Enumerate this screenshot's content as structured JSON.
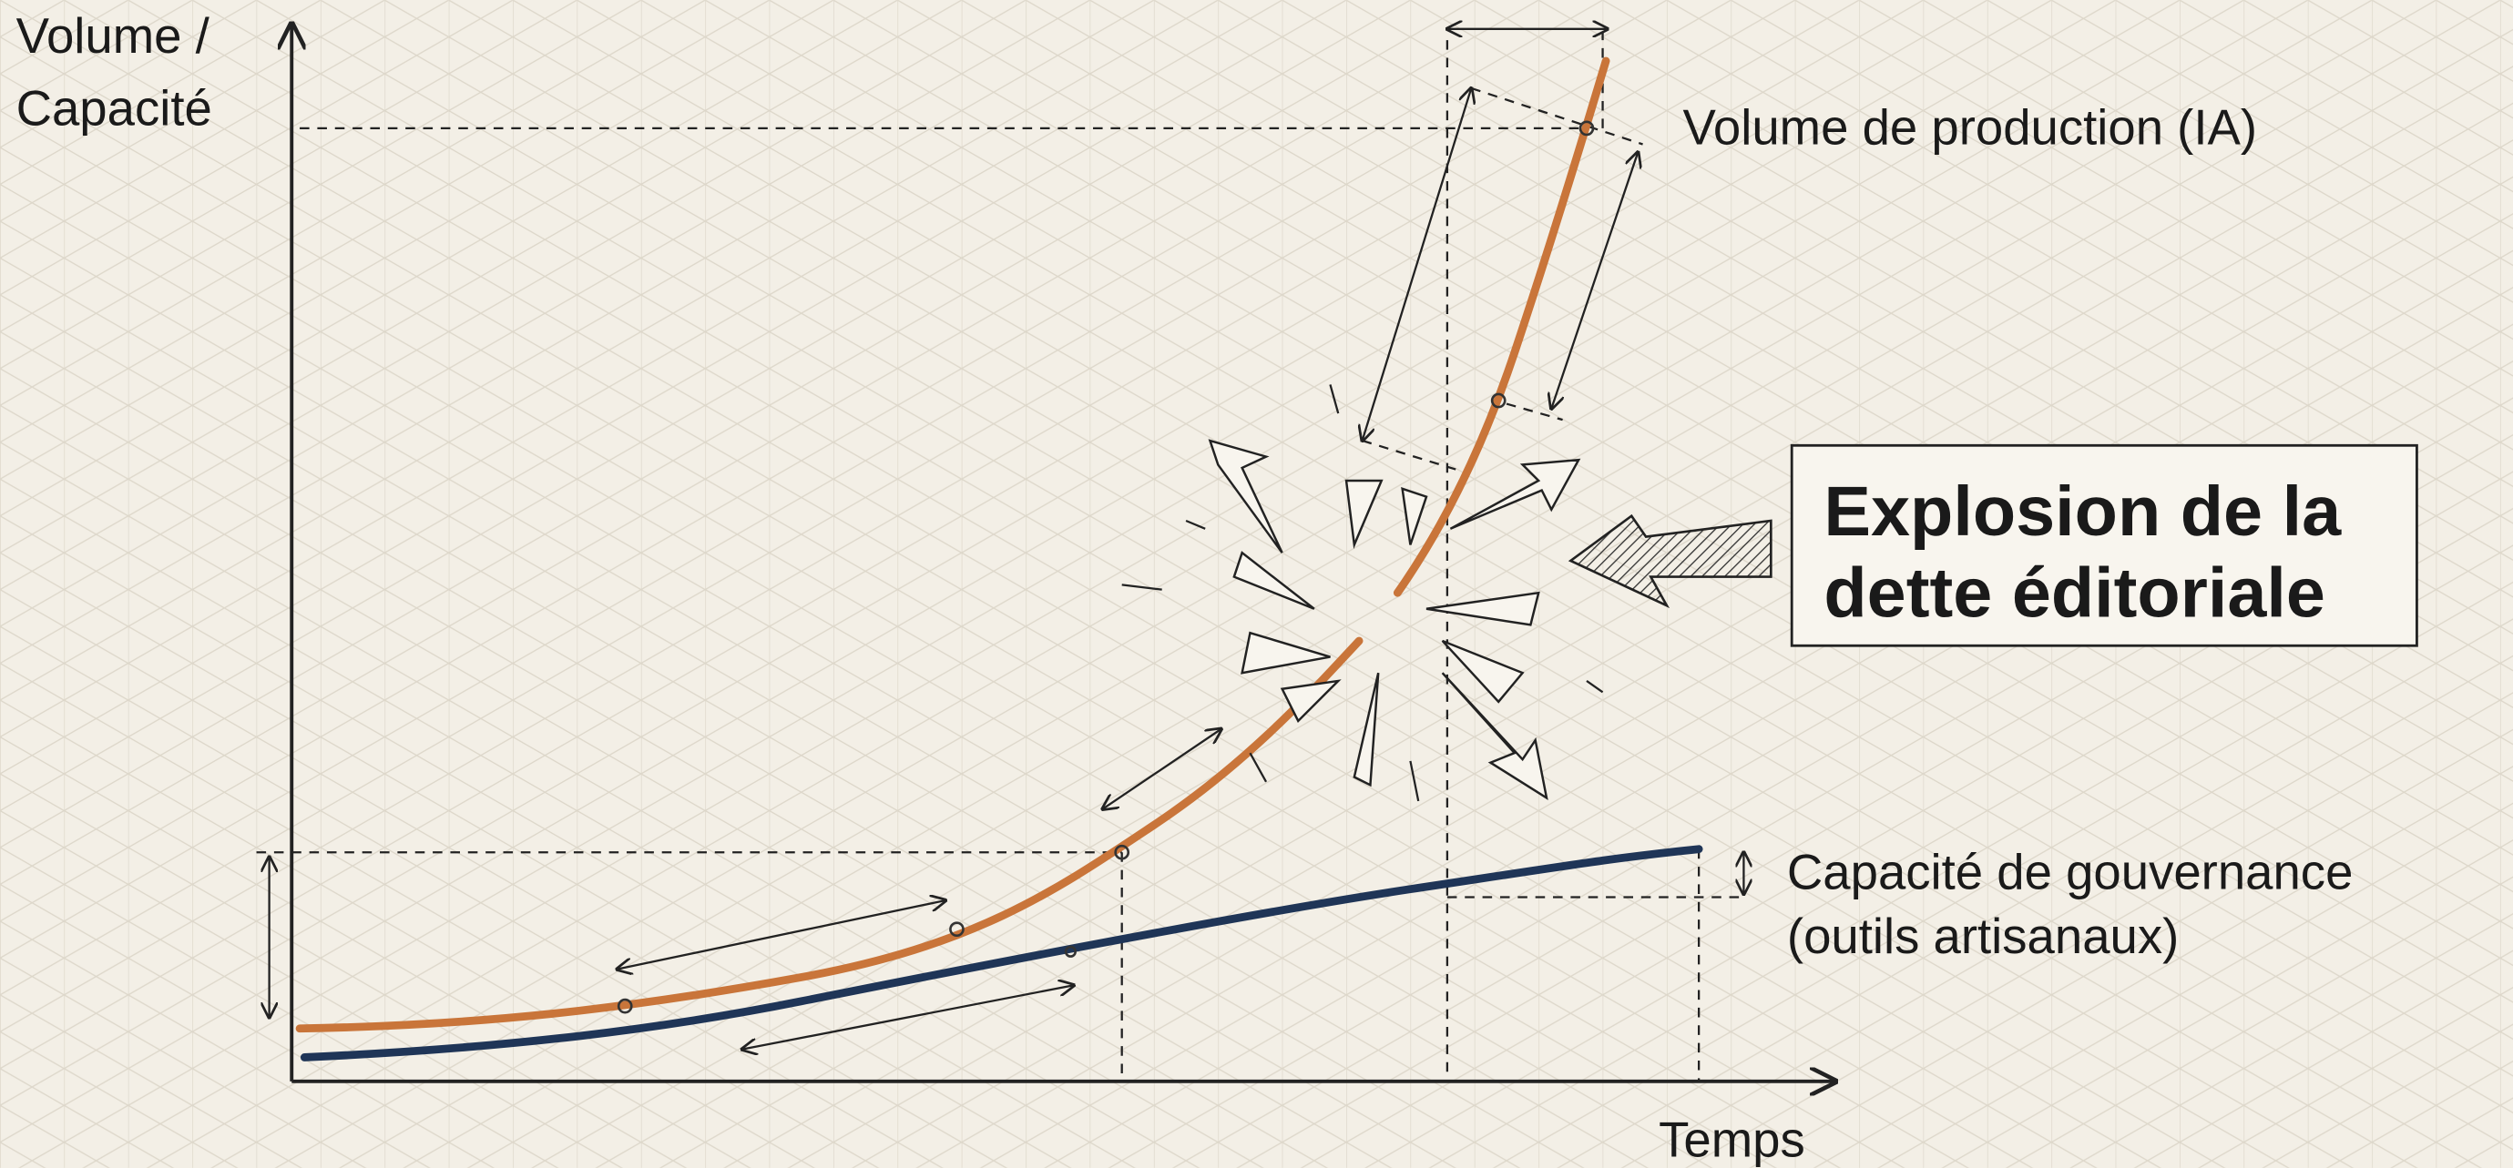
{
  "axis": {
    "y_label": [
      "Volume /",
      "Capacité"
    ],
    "x_label": "Temps"
  },
  "curves": {
    "production": "Volume de production (IA)",
    "governance": [
      "Capacité de gouvernance",
      "(outils artisanaux)"
    ]
  },
  "callout": [
    "Explosion de la",
    "dette éditoriale"
  ]
}
